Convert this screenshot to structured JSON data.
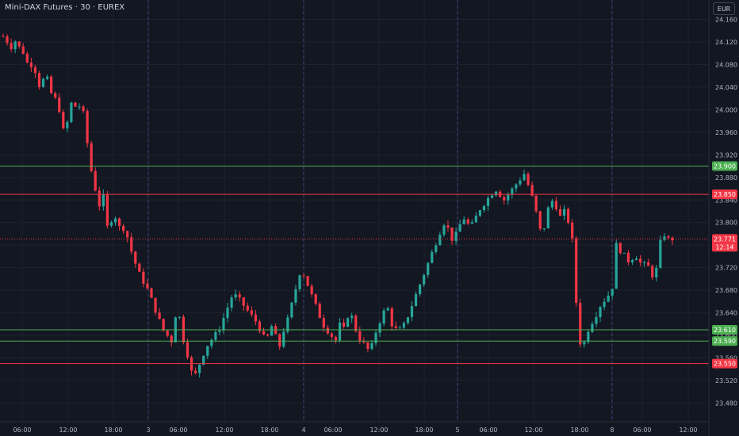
{
  "header": {
    "title": "Mini-DAX Futures · 30 · EUREX",
    "currency": "EUR"
  },
  "chart_data": {
    "type": "candlestick",
    "instrument": "Mini-DAX Futures",
    "interval": "30",
    "exchange": "EUREX",
    "ylim": [
      23460,
      24180
    ],
    "y_ticks": [
      24160,
      24120,
      24080,
      24040,
      24000,
      23960,
      23920,
      23880,
      23840,
      23800,
      23760,
      23720,
      23680,
      23640,
      23600,
      23560,
      23520,
      23480
    ],
    "y_tick_labels": [
      "24.160",
      "24.120",
      "24.080",
      "24.040",
      "24.000",
      "23.960",
      "23.920",
      "23.880",
      "23.840",
      "23.800",
      "23.760",
      "23.720",
      "23.680",
      "23.640",
      "23.600",
      "23.560",
      "23.520",
      "23.480"
    ],
    "x_tick_labels": [
      "06:00",
      "12:00",
      "18:00",
      "3",
      "06:00",
      "12:00",
      "18:00",
      "4",
      "06:00",
      "12:00",
      "18:00",
      "5",
      "06:00",
      "12:00",
      "18:00",
      "8",
      "06:00",
      "12:00"
    ],
    "day_separators": [
      "3",
      "4",
      "5",
      "8"
    ],
    "horizontal_levels": [
      {
        "value": 23900,
        "label": "23.900",
        "color": "#4caf50"
      },
      {
        "value": 23850,
        "label": "23.850",
        "color": "#f23645"
      },
      {
        "value": 23610,
        "label": "23.610",
        "color": "#4caf50"
      },
      {
        "value": 23590,
        "label": "23.590",
        "color": "#4caf50"
      },
      {
        "value": 23550,
        "label": "23.550",
        "color": "#f23645"
      }
    ],
    "last_price": {
      "value": 23771,
      "label": "23.771",
      "countdown": "12:14",
      "color": "#f23645"
    },
    "colors": {
      "up": "#26a69a",
      "down": "#f23645",
      "background": "#131722",
      "grid": "#1e222d"
    },
    "path_points": [
      [
        24130,
        24120
      ],
      [
        24110,
        24125
      ],
      [
        24105,
        24100
      ],
      [
        24070,
        24090
      ],
      [
        24040,
        24050
      ],
      [
        24060,
        24030
      ],
      [
        24020,
        24000
      ],
      [
        23960,
        23980
      ],
      [
        24020,
        24000
      ],
      [
        24010,
        23980
      ],
      [
        23900,
        23880
      ],
      [
        23820,
        23860
      ],
      [
        23790,
        23805
      ],
      [
        23810,
        23790
      ],
      [
        23790,
        23770
      ],
      [
        23740,
        23720
      ],
      [
        23700,
        23690
      ],
      [
        23670,
        23650
      ],
      [
        23630,
        23610
      ],
      [
        23600,
        23590
      ],
      [
        23640,
        23630
      ],
      [
        23580,
        23560
      ],
      [
        23520,
        23540
      ],
      [
        23560,
        23580
      ],
      [
        23590,
        23600
      ],
      [
        23610,
        23630
      ],
      [
        23650,
        23670
      ],
      [
        23670,
        23660
      ],
      [
        23650,
        23640
      ],
      [
        23630,
        23620
      ],
      [
        23600,
        23590
      ],
      [
        23620,
        23600
      ],
      [
        23580,
        23610
      ],
      [
        23630,
        23660
      ],
      [
        23690,
        23720
      ],
      [
        23700,
        23680
      ],
      [
        23660,
        23640
      ],
      [
        23620,
        23610
      ],
      [
        23600,
        23590
      ],
      [
        23620,
        23610
      ],
      [
        23640,
        23630
      ],
      [
        23600,
        23590
      ],
      [
        23580,
        23570
      ],
      [
        23600,
        23620
      ],
      [
        23640,
        23650
      ],
      [
        23620,
        23610
      ],
      [
        23610,
        23620
      ],
      [
        23640,
        23660
      ],
      [
        23680,
        23700
      ],
      [
        23720,
        23740
      ],
      [
        23760,
        23780
      ],
      [
        23800,
        23790
      ],
      [
        23770,
        23780
      ],
      [
        23800,
        23810
      ],
      [
        23790,
        23800
      ],
      [
        23820,
        23830
      ],
      [
        23840,
        23850
      ],
      [
        23860,
        23850
      ],
      [
        23840,
        23850
      ],
      [
        23860,
        23870
      ],
      [
        23880,
        23890
      ],
      [
        23850,
        23840
      ],
      [
        23790,
        23780
      ],
      [
        23820,
        23840
      ],
      [
        23830,
        23810
      ],
      [
        23820,
        23800
      ],
      [
        23760,
        23620
      ],
      [
        23570,
        23600
      ],
      [
        23620,
        23630
      ],
      [
        23650,
        23660
      ],
      [
        23670,
        23680
      ],
      [
        23760,
        23750
      ],
      [
        23740,
        23730
      ],
      [
        23740,
        23740
      ],
      [
        23720,
        23730
      ],
      [
        23710,
        23700
      ],
      [
        23760,
        23780
      ],
      [
        23770,
        23771
      ]
    ]
  }
}
